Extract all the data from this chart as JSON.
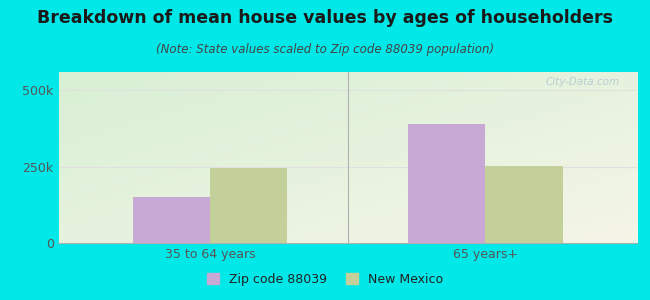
{
  "title": "Breakdown of mean house values by ages of householders",
  "subtitle": "(Note: State values scaled to Zip code 88039 population)",
  "categories": [
    "35 to 64 years",
    "65 years+"
  ],
  "zip_values": [
    150000,
    390000
  ],
  "state_values": [
    247000,
    252000
  ],
  "ylim_max": 560000,
  "yticks": [
    0,
    250000,
    500000
  ],
  "ytick_labels": [
    "0",
    "250k",
    "500k"
  ],
  "zip_color": "#c8a8d4",
  "state_color": "#c4d09a",
  "bg_color": "#00e8e8",
  "legend_zip_label": "Zip code 88039",
  "legend_state_label": "New Mexico",
  "bar_width": 0.28,
  "watermark": "City-Data.com",
  "title_fontsize": 12.5,
  "subtitle_fontsize": 8.5,
  "tick_fontsize": 9,
  "title_color": "#1a1a1a",
  "subtitle_color": "#444444",
  "tick_color": "#555555",
  "separator_color": "#b0b0b0",
  "grid_color": "#e0e0e0"
}
